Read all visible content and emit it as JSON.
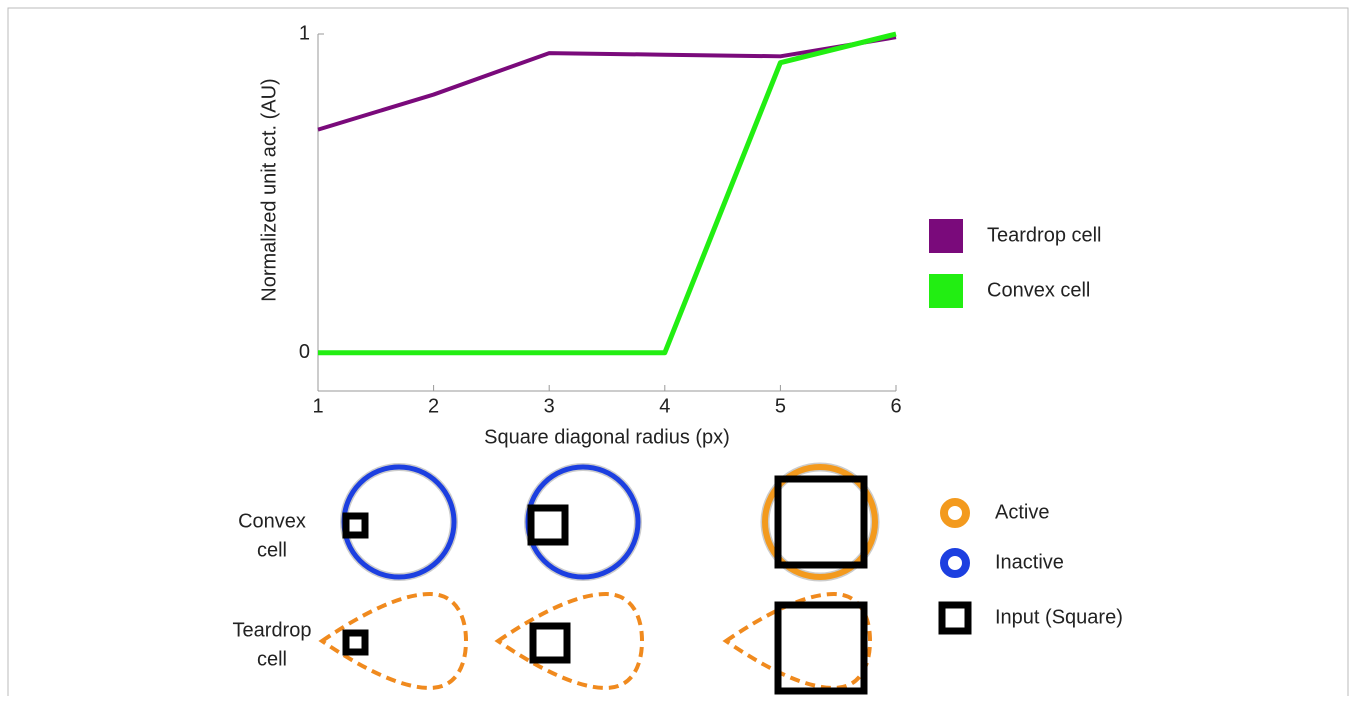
{
  "chart_data": {
    "type": "line",
    "x": [
      1,
      2,
      3,
      4,
      5,
      6
    ],
    "series": [
      {
        "name": "Teardrop cell",
        "color": "#7a0a7b",
        "values": [
          0.7,
          0.81,
          0.94,
          0.935,
          0.93,
          0.99
        ]
      },
      {
        "name": "Convex cell",
        "color": "#22ee12",
        "values": [
          0,
          0,
          0,
          0,
          0.91,
          1.0
        ]
      }
    ],
    "xlabel": "Square diagonal radius (px)",
    "ylabel": "Normalized unit act. (AU)",
    "xlim": [
      1,
      6
    ],
    "xticks": [
      1,
      2,
      3,
      4,
      5,
      6
    ],
    "ylim": [
      -0.12,
      1
    ],
    "yticks": [
      0,
      1
    ],
    "grid": false,
    "legend": "right"
  },
  "diagram": {
    "rows": [
      {
        "label_line1": "Convex",
        "label_line2": "cell"
      },
      {
        "label_line1": "Teardrop",
        "label_line2": "cell"
      }
    ],
    "legend": [
      "Active",
      "Inactive",
      "Input (Square)"
    ]
  }
}
